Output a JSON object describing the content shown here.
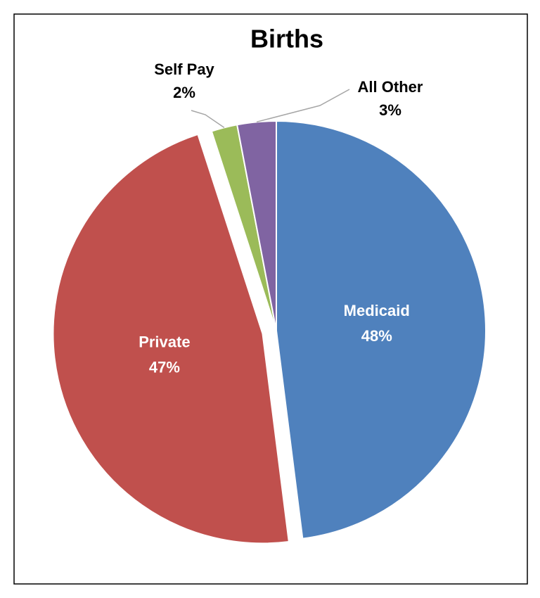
{
  "chart_data": {
    "type": "pie",
    "title": "Births",
    "categories": [
      "Medicaid",
      "Private",
      "Self Pay",
      "All Other"
    ],
    "values": [
      48,
      47,
      2,
      3
    ],
    "value_labels": [
      "48%",
      "47%",
      "2%",
      "3%"
    ],
    "colors": [
      "#4f81bd",
      "#c0504d",
      "#9bbb59",
      "#8064a2"
    ]
  }
}
